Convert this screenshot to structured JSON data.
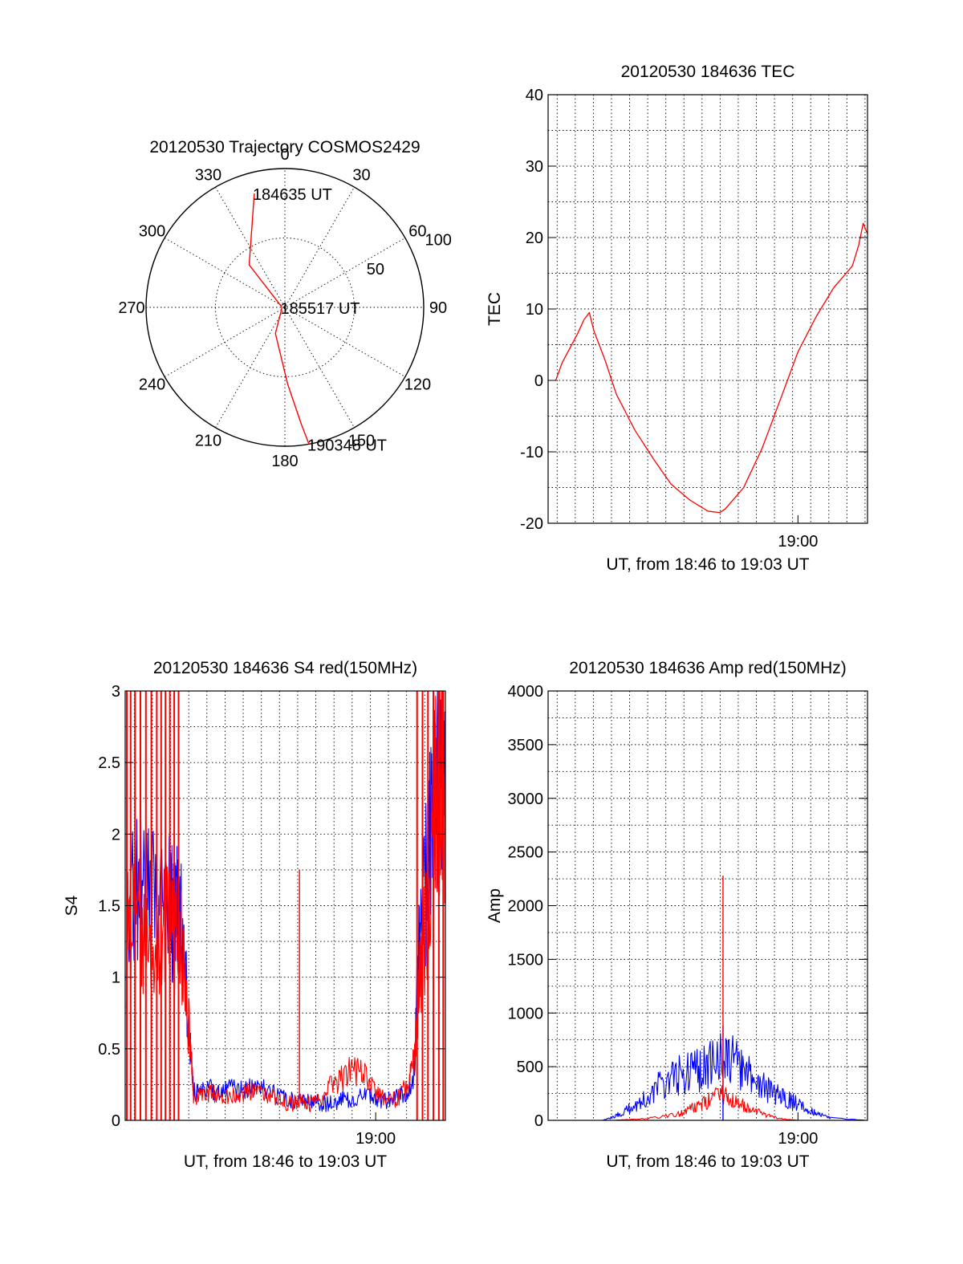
{
  "colors": {
    "red": "#ff0000",
    "blue": "#0000ff",
    "axes": "#000000"
  },
  "chart_data": [
    {
      "id": "trajectory",
      "type": "polar",
      "title": "20120530 Trajectory COSMOS2429",
      "azimuth_labels": [
        "0",
        "30",
        "60",
        "90",
        "120",
        "150",
        "180",
        "210",
        "240",
        "270",
        "300",
        "330"
      ],
      "radial_labels": [
        "50",
        "100"
      ],
      "radial_max": 100,
      "grid": true,
      "points": [
        {
          "label": "184635 UT",
          "azimuth": 345,
          "radius": 85
        },
        {
          "label": "185517 UT",
          "azimuth": 270,
          "radius": 2
        },
        {
          "label": "190348 UT",
          "azimuth": 170,
          "radius": 100
        }
      ],
      "series": [
        {
          "color": "red",
          "azimuth": [
            345,
            320,
            270,
            200,
            178,
            172,
            170
          ],
          "radius": [
            85,
            40,
            2,
            20,
            55,
            85,
            100
          ]
        }
      ]
    },
    {
      "id": "tec",
      "type": "line",
      "title": "20120530 184636 TEC",
      "xlabel": "UT, from 18:46 to 19:03 UT",
      "ylabel": "TEC",
      "xlim": [
        18.77,
        19.064
      ],
      "ylim": [
        -20,
        40
      ],
      "yticks": [
        -20,
        -10,
        0,
        10,
        20,
        30,
        40
      ],
      "xticks": [
        {
          "value": 19.0,
          "label": "19:00"
        }
      ],
      "x_minor_step": 0.01667,
      "y_minor_step": 5,
      "grid": true,
      "series": [
        {
          "color": "red",
          "x": [
            18.777,
            18.783,
            18.79,
            18.797,
            18.803,
            18.808,
            18.812,
            18.817,
            18.822,
            18.833,
            18.85,
            18.867,
            18.883,
            18.9,
            18.917,
            18.928,
            18.933,
            18.95,
            18.967,
            18.983,
            19.0,
            19.017,
            19.033,
            19.05,
            19.056,
            19.06,
            19.064
          ],
          "y": [
            0,
            2.5,
            4.5,
            6.5,
            8.5,
            9.5,
            7.0,
            5.0,
            3.0,
            -2.0,
            -7.0,
            -11.0,
            -14.5,
            -16.7,
            -18.3,
            -18.5,
            -18.0,
            -15.0,
            -9.5,
            -3.0,
            4.0,
            9.0,
            13.0,
            16.0,
            19.0,
            22.0,
            20.5
          ]
        }
      ]
    },
    {
      "id": "s4",
      "type": "line",
      "title": "20120530 184636 S4 red(150MHz)",
      "xlabel": "UT, from 18:46 to 19:03 UT",
      "ylabel": "S4",
      "xlim": [
        18.77,
        19.064
      ],
      "ylim": [
        0,
        3
      ],
      "yticks": [
        0,
        0.5,
        1,
        1.5,
        2,
        2.5,
        3
      ],
      "xticks": [
        {
          "value": 19.0,
          "label": "19:00"
        }
      ],
      "x_minor_step": 0.01667,
      "y_minor_step": 0.25,
      "grid": true,
      "series": [
        {
          "color": "blue",
          "x": [
            18.771,
            18.78,
            18.79,
            18.8,
            18.81,
            18.815,
            18.82,
            18.825,
            18.83,
            18.833,
            18.84,
            18.85,
            18.86,
            18.87,
            18.88,
            18.89,
            18.9,
            18.91,
            18.92,
            18.93,
            18.94,
            18.95,
            18.96,
            18.97,
            18.98,
            18.99,
            19.0,
            19.01,
            19.02,
            19.03,
            19.035,
            19.04,
            19.045,
            19.05,
            19.055,
            19.06,
            19.064
          ],
          "y": [
            1.5,
            1.7,
            1.6,
            1.45,
            1.55,
            1.4,
            1.5,
            1.0,
            0.5,
            0.2,
            0.2,
            0.22,
            0.2,
            0.22,
            0.2,
            0.24,
            0.2,
            0.17,
            0.15,
            0.14,
            0.13,
            0.12,
            0.12,
            0.14,
            0.15,
            0.18,
            0.15,
            0.14,
            0.16,
            0.2,
            0.3,
            1.2,
            1.6,
            2.0,
            2.3,
            2.5,
            2.4
          ]
        },
        {
          "color": "red",
          "x": [
            18.771,
            18.78,
            18.79,
            18.8,
            18.81,
            18.815,
            18.82,
            18.825,
            18.83,
            18.833,
            18.84,
            18.85,
            18.86,
            18.87,
            18.88,
            18.89,
            18.9,
            18.91,
            18.92,
            18.925,
            18.93,
            18.94,
            18.95,
            18.96,
            18.97,
            18.98,
            18.99,
            19.0,
            19.01,
            19.02,
            19.03,
            19.035,
            19.04,
            19.045,
            19.05,
            19.055,
            19.06,
            19.064
          ],
          "y": [
            1.2,
            1.4,
            1.3,
            1.3,
            1.4,
            1.3,
            1.3,
            1.0,
            0.5,
            0.15,
            0.18,
            0.2,
            0.15,
            0.18,
            0.2,
            0.2,
            0.18,
            0.15,
            0.12,
            0.12,
            0.12,
            0.11,
            0.15,
            0.25,
            0.3,
            0.35,
            0.3,
            0.2,
            0.15,
            0.15,
            0.25,
            0.4,
            1.0,
            1.3,
            1.7,
            2.2,
            2.4,
            2.2
          ]
        }
      ],
      "red_spikes": [
        18.7715,
        18.775,
        18.779,
        18.784,
        18.789,
        18.794,
        18.799,
        18.803,
        18.807,
        18.811,
        18.815,
        18.819,
        19.038,
        19.043,
        19.048,
        19.053,
        19.058,
        19.062
      ],
      "red_peak": {
        "x": 18.93,
        "y": 1.75
      }
    },
    {
      "id": "amp",
      "type": "line",
      "title": "20120530 184636 Amp red(150MHz)",
      "xlabel": "UT, from 18:46 to 19:03 UT",
      "ylabel": "Amp",
      "xlim": [
        18.77,
        19.064
      ],
      "ylim": [
        0,
        4000
      ],
      "yticks": [
        0,
        500,
        1000,
        1500,
        2000,
        2500,
        3000,
        3500,
        4000
      ],
      "xticks": [
        {
          "value": 19.0,
          "label": "19:00"
        }
      ],
      "x_minor_step": 0.01667,
      "y_minor_step": 250,
      "grid": true,
      "series": [
        {
          "color": "blue",
          "x": [
            18.77,
            18.82,
            18.83,
            18.84,
            18.85,
            18.86,
            18.87,
            18.88,
            18.89,
            18.9,
            18.91,
            18.92,
            18.93,
            18.94,
            18.95,
            18.96,
            18.97,
            18.98,
            18.99,
            19.0,
            19.01,
            19.02,
            19.03,
            19.064
          ],
          "y": [
            0,
            0,
            30,
            80,
            140,
            200,
            300,
            380,
            420,
            450,
            470,
            520,
            600,
            550,
            450,
            380,
            300,
            240,
            200,
            150,
            100,
            60,
            20,
            0
          ]
        },
        {
          "color": "red",
          "x": [
            18.77,
            18.83,
            18.85,
            18.87,
            18.89,
            18.9,
            18.91,
            18.92,
            18.93,
            18.94,
            18.95,
            18.96,
            18.97,
            18.98,
            18.99,
            19.0,
            19.064
          ],
          "y": [
            0,
            0,
            10,
            25,
            60,
            100,
            140,
            190,
            240,
            200,
            140,
            90,
            50,
            25,
            10,
            0,
            0
          ]
        }
      ],
      "red_peak": {
        "x": 18.931,
        "y": 2280
      },
      "blue_peak": {
        "x": 18.931,
        "y": 880
      }
    }
  ]
}
